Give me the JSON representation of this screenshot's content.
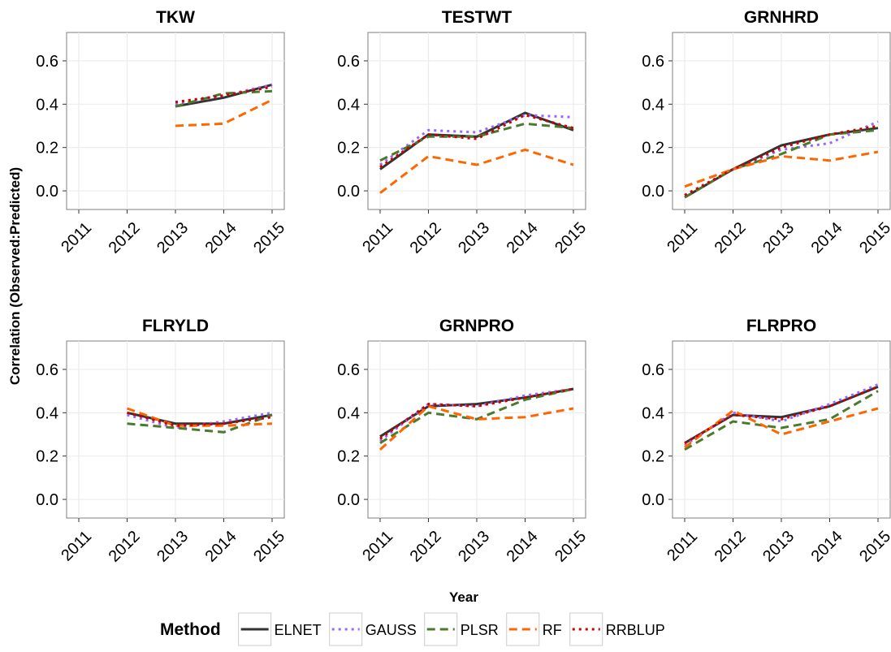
{
  "chart_data": {
    "type": "line",
    "y_label": "Correlation (Observed:Predicted)",
    "x_label": "Year",
    "categories": [
      "2011",
      "2012",
      "2013",
      "2014",
      "2015"
    ],
    "ylim": [
      -0.086,
      0.731
    ],
    "yticks": [
      {
        "value": 0,
        "label": "0.0"
      },
      0.2,
      0.4,
      0.6
    ],
    "grid": true,
    "legend": {
      "title": "Method",
      "position": "bottom",
      "entries": [
        {
          "name": "ELNET",
          "color": "#333333",
          "linestyle": "solid"
        },
        {
          "name": "GAUSS",
          "color": "#9966ff",
          "linestyle": "dotted"
        },
        {
          "name": "PLSR",
          "color": "#4a7a2e",
          "linestyle": "dashed"
        },
        {
          "name": "RF",
          "color": "#ff6600",
          "linestyle": "dashed"
        },
        {
          "name": "RRBLUP",
          "color": "#cc0000",
          "linestyle": "dotted"
        }
      ]
    },
    "panels": [
      {
        "title": "TKW",
        "series": [
          {
            "values": [
              null,
              null,
              0.39,
              0.43,
              0.49
            ]
          },
          {
            "values": [
              null,
              null,
              0.4,
              0.44,
              0.49
            ]
          },
          {
            "values": [
              null,
              null,
              0.39,
              0.45,
              0.46
            ]
          },
          {
            "values": [
              null,
              null,
              0.3,
              0.31,
              0.42
            ]
          },
          {
            "values": [
              null,
              null,
              0.41,
              0.44,
              0.48
            ]
          }
        ]
      },
      {
        "title": "TESTWT",
        "series": [
          {
            "values": [
              0.1,
              0.26,
              0.25,
              0.36,
              0.28
            ]
          },
          {
            "values": [
              0.12,
              0.28,
              0.27,
              0.35,
              0.34
            ]
          },
          {
            "values": [
              0.14,
              0.25,
              0.25,
              0.31,
              0.29
            ]
          },
          {
            "values": [
              -0.01,
              0.16,
              0.12,
              0.19,
              0.12
            ]
          },
          {
            "values": [
              0.11,
              0.26,
              0.24,
              0.35,
              0.29
            ]
          }
        ]
      },
      {
        "title": "GRNHRD",
        "series": [
          {
            "values": [
              -0.03,
              0.1,
              0.21,
              0.26,
              0.29
            ]
          },
          {
            "values": [
              -0.02,
              0.1,
              0.19,
              0.22,
              0.32
            ]
          },
          {
            "values": [
              -0.03,
              0.1,
              0.17,
              0.26,
              0.28
            ]
          },
          {
            "values": [
              0.02,
              0.1,
              0.16,
              0.14,
              0.18
            ]
          },
          {
            "values": [
              -0.02,
              0.1,
              0.2,
              0.26,
              0.3
            ]
          }
        ]
      },
      {
        "title": "FLRYLD",
        "series": [
          {
            "values": [
              null,
              0.4,
              0.35,
              0.35,
              0.39
            ]
          },
          {
            "values": [
              null,
              0.39,
              0.33,
              0.36,
              0.4
            ]
          },
          {
            "values": [
              null,
              0.35,
              0.33,
              0.31,
              0.39
            ]
          },
          {
            "values": [
              null,
              0.42,
              0.34,
              0.34,
              0.35
            ]
          },
          {
            "values": [
              null,
              0.4,
              0.34,
              0.35,
              0.38
            ]
          }
        ]
      },
      {
        "title": "GRNPRO",
        "series": [
          {
            "values": [
              0.29,
              0.43,
              0.44,
              0.47,
              0.51
            ]
          },
          {
            "values": [
              0.27,
              0.44,
              0.43,
              0.48,
              0.51
            ]
          },
          {
            "values": [
              0.26,
              0.4,
              0.37,
              0.46,
              0.51
            ]
          },
          {
            "values": [
              0.23,
              0.43,
              0.37,
              0.38,
              0.42
            ]
          },
          {
            "values": [
              0.28,
              0.44,
              0.43,
              0.47,
              0.51
            ]
          }
        ]
      },
      {
        "title": "FLRPRO",
        "series": [
          {
            "values": [
              0.26,
              0.39,
              0.38,
              0.43,
              0.52
            ]
          },
          {
            "values": [
              0.25,
              0.4,
              0.36,
              0.44,
              0.53
            ]
          },
          {
            "values": [
              0.23,
              0.36,
              0.33,
              0.37,
              0.5
            ]
          },
          {
            "values": [
              0.24,
              0.41,
              0.3,
              0.36,
              0.42
            ]
          },
          {
            "values": [
              0.26,
              0.39,
              0.37,
              0.43,
              0.52
            ]
          }
        ]
      }
    ]
  }
}
